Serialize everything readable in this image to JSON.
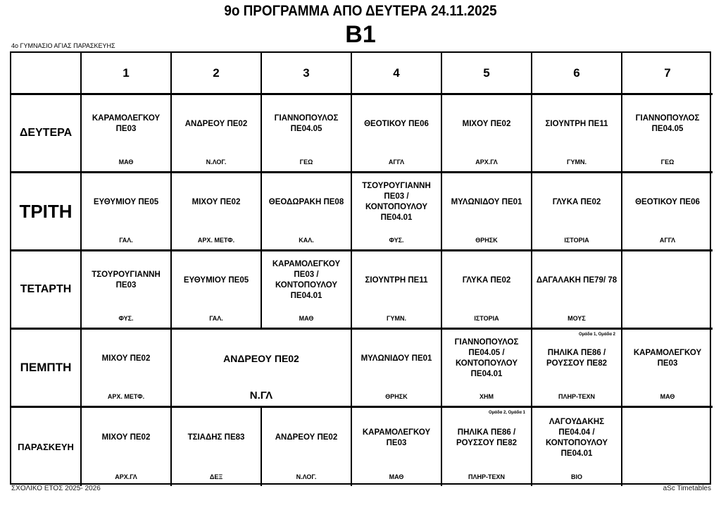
{
  "header": {
    "title": "9ο ΠΡΟΓΡΑΜΜΑ ΑΠΟ ΔΕΥΤΕΡΑ 24.11.2025",
    "class_name": "Β1",
    "school": "4ο ΓΥΜΝΑΣΙΟ ΑΓΙΑΣ ΠΑΡΑΣΚΕΥΗΣ"
  },
  "footer": {
    "left": "ΣΧΟΛΙΚΟ ΕΤΟΣ 2025- 2026",
    "right": "aSc Timetables"
  },
  "periods": [
    "1",
    "2",
    "3",
    "4",
    "5",
    "6",
    "7"
  ],
  "days": [
    {
      "name": "ΔΕΥΤΕΡΑ",
      "cells": [
        {
          "teacher": "ΚΑΡΑΜΟΛΕΓΚΟΥ ΠΕ03",
          "subject": "ΜΑΘ"
        },
        {
          "teacher": "ΑΝΔΡΕΟΥ ΠΕ02",
          "subject": "Ν.ΛΟΓ."
        },
        {
          "teacher": "ΓΙΑΝΝΟΠΟΥΛΟΣ ΠΕ04.05",
          "subject": "ΓΕΩ"
        },
        {
          "teacher": "ΘΕΟΤΙΚΟΥ ΠΕ06",
          "subject": "ΑΓΓΛ"
        },
        {
          "teacher": "ΜΙΧΟΥ ΠΕ02",
          "subject": "ΑΡΧ.ΓΛ"
        },
        {
          "teacher": "ΣΙΟΥΝΤΡΗ ΠΕ11",
          "subject": "ΓΥΜΝ."
        },
        {
          "teacher": "ΓΙΑΝΝΟΠΟΥΛΟΣ ΠΕ04.05",
          "subject": "ΓΕΩ"
        }
      ]
    },
    {
      "name": "ΤΡΙΤΗ",
      "cells": [
        {
          "teacher": "ΕΥΘΥΜΙΟΥ ΠΕ05",
          "subject": "ΓΑΛ."
        },
        {
          "teacher": "ΜΙΧΟΥ ΠΕ02",
          "subject": "ΑΡΧ. ΜΕΤΦ."
        },
        {
          "teacher": "ΘΕΟΔΩΡΑΚΗ ΠΕ08",
          "subject": "ΚΑΛ."
        },
        {
          "teacher": "ΤΣΟΥΡΟΥΓΙΑΝΝΗ ΠΕ03 / ΚΟΝΤΟΠΟΥΛΟΥ ΠΕ04.01",
          "subject": "ΦΥΣ."
        },
        {
          "teacher": "ΜΥΛΩΝΙΔΟΥ ΠΕ01",
          "subject": "ΘΡΗΣΚ"
        },
        {
          "teacher": "ΓΛΥΚΑ ΠΕ02",
          "subject": "ΙΣΤΟΡΙΑ"
        },
        {
          "teacher": "ΘΕΟΤΙΚΟΥ ΠΕ06",
          "subject": "ΑΓΓΛ"
        }
      ]
    },
    {
      "name": "ΤΕΤΑΡΤΗ",
      "cells": [
        {
          "teacher": "ΤΣΟΥΡΟΥΓΙΑΝΝΗ ΠΕ03",
          "subject": "ΦΥΣ."
        },
        {
          "teacher": "ΕΥΘΥΜΙΟΥ ΠΕ05",
          "subject": "ΓΑΛ."
        },
        {
          "teacher": "ΚΑΡΑΜΟΛΕΓΚΟΥ ΠΕ03 / ΚΟΝΤΟΠΟΥΛΟΥ ΠΕ04.01",
          "subject": "ΜΑΘ"
        },
        {
          "teacher": "ΣΙΟΥΝΤΡΗ ΠΕ11",
          "subject": "ΓΥΜΝ."
        },
        {
          "teacher": "ΓΛΥΚΑ ΠΕ02",
          "subject": "ΙΣΤΟΡΙΑ"
        },
        {
          "teacher": "ΔΑΓΑΛΑΚΗ ΠΕ79/ 78",
          "subject": "ΜΟΥΣ"
        },
        {
          "teacher": "",
          "subject": ""
        }
      ]
    },
    {
      "name": "ΠΕΜΠΤΗ",
      "cells": [
        {
          "teacher": "ΜΙΧΟΥ ΠΕ02",
          "subject": "ΑΡΧ. ΜΕΤΦ."
        },
        {
          "teacher": "ΑΝΔΡΕΟΥ ΠΕ02",
          "subject": "Ν.ΓΛ",
          "span": 2
        },
        {
          "teacher": "ΜΥΛΩΝΙΔΟΥ ΠΕ01",
          "subject": "ΘΡΗΣΚ"
        },
        {
          "teacher": "ΓΙΑΝΝΟΠΟΥΛΟΣ ΠΕ04.05 / ΚΟΝΤΟΠΟΥΛΟΥ ΠΕ04.01",
          "subject": "ΧΗΜ"
        },
        {
          "teacher": "ΠΗΛΙΚΑ ΠΕ86 / ΡΟΥΣΣΟΥ ΠΕ82",
          "subject": "ΠΛΗΡ-ΤΕΧΝ",
          "groups": "Ομάδα 1, Ομάδα 2"
        },
        {
          "teacher": "ΚΑΡΑΜΟΛΕΓΚΟΥ ΠΕ03",
          "subject": "ΜΑΘ"
        }
      ]
    },
    {
      "name": "ΠΑΡΑΣΚΕΥΗ",
      "cells": [
        {
          "teacher": "ΜΙΧΟΥ ΠΕ02",
          "subject": "ΑΡΧ.ΓΛ"
        },
        {
          "teacher": "ΤΣΙΑΔΗΣ ΠΕ83",
          "subject": "ΔΕΞ"
        },
        {
          "teacher": "ΑΝΔΡΕΟΥ ΠΕ02",
          "subject": "Ν.ΛΟΓ."
        },
        {
          "teacher": "ΚΑΡΑΜΟΛΕΓΚΟΥ ΠΕ03",
          "subject": "ΜΑΘ"
        },
        {
          "teacher": "ΠΗΛΙΚΑ ΠΕ86 / ΡΟΥΣΣΟΥ ΠΕ82",
          "subject": "ΠΛΗΡ-ΤΕΧΝ",
          "groups": "Ομάδα 2, Ομάδα 1"
        },
        {
          "teacher": "ΛΑΓΟΥΔΑΚΗΣ ΠΕ04.04 / ΚΟΝΤΟΠΟΥΛΟΥ ΠΕ04.01",
          "subject": "ΒΙΟ"
        },
        {
          "teacher": "",
          "subject": ""
        }
      ]
    }
  ]
}
